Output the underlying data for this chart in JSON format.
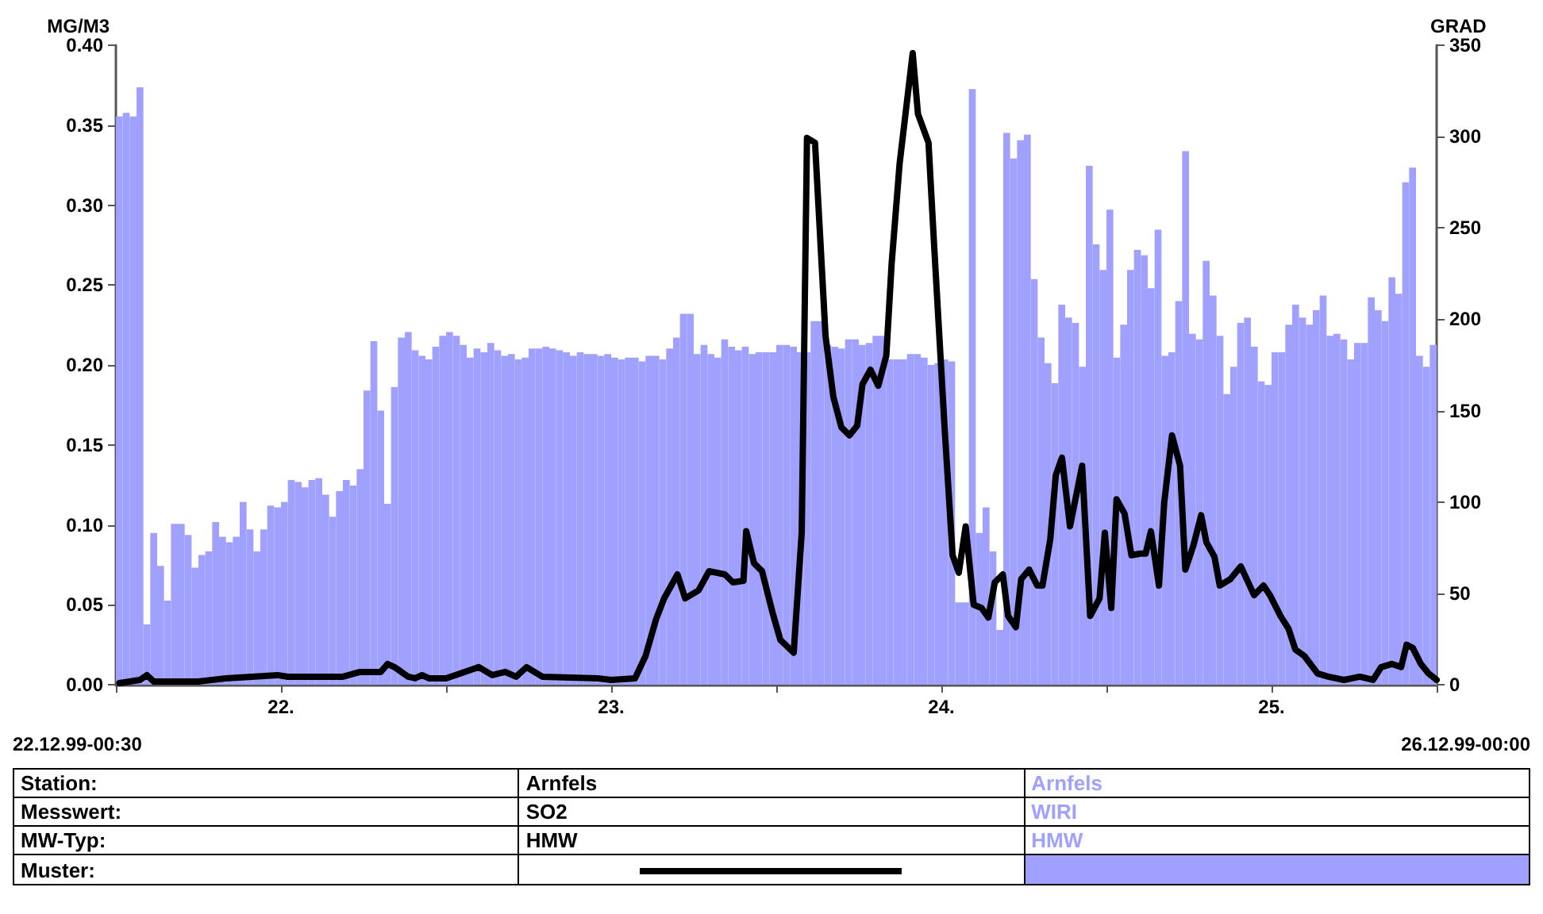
{
  "chart_data": {
    "type": "line",
    "ylabel": "MG/M3",
    "y2label": "GRAD",
    "xlim": [
      "--12-22T00:00",
      "--12-26T00:00"
    ],
    "xticks": [
      {
        "value": "--12-22T00:00",
        "label": null
      },
      {
        "value": "--12-22T12:00",
        "label": "22."
      },
      {
        "value": "--12-23T00:00",
        "label": null
      },
      {
        "value": "--12-23T12:00",
        "label": "23."
      },
      {
        "value": "--12-24T00:00",
        "label": null
      },
      {
        "value": "--12-24T12:00",
        "label": "24."
      },
      {
        "value": "--12-25T00:00",
        "label": null
      },
      {
        "value": "--12-25T12:00",
        "label": "25."
      },
      {
        "value": "--12-26T00:00",
        "label": null
      }
    ],
    "ylim": [
      0,
      0.4
    ],
    "yticks": [
      {
        "value": 0,
        "label": "0.00"
      },
      {
        "value": 0.05,
        "label": "0.05"
      },
      {
        "value": 0.1,
        "label": "0.10"
      },
      {
        "value": 0.15,
        "label": "0.15"
      },
      {
        "value": 0.2,
        "label": "0.20"
      },
      {
        "value": 0.25,
        "label": "0.25"
      },
      {
        "value": 0.3,
        "label": "0.30"
      },
      {
        "value": 0.35,
        "label": "0.35"
      },
      {
        "value": 0.4,
        "label": "0.40"
      }
    ],
    "y2lim": [
      0,
      350
    ],
    "y2ticks": [
      0,
      50,
      100,
      150,
      200,
      250,
      300,
      350
    ],
    "x": [
      "--12-22T00:15",
      "--12-22T00:45",
      "--12-22T01:15",
      "--12-22T01:45",
      "--12-22T02:15",
      "--12-22T02:45",
      "--12-22T03:15",
      "--12-22T03:45",
      "--12-22T04:15",
      "--12-22T04:45",
      "--12-22T05:15",
      "--12-22T05:45",
      "--12-22T06:15",
      "--12-22T06:45",
      "--12-22T07:15",
      "--12-22T07:45",
      "--12-22T08:15",
      "--12-22T08:45",
      "--12-22T09:15",
      "--12-22T09:45",
      "--12-22T10:15",
      "--12-22T10:45",
      "--12-22T11:15",
      "--12-22T11:45",
      "--12-22T12:15",
      "--12-22T12:45",
      "--12-22T13:15",
      "--12-22T13:45",
      "--12-22T14:15",
      "--12-22T14:45",
      "--12-22T15:15",
      "--12-22T15:45",
      "--12-22T16:15",
      "--12-22T16:45",
      "--12-22T17:15",
      "--12-22T17:45",
      "--12-22T18:15",
      "--12-22T18:45",
      "--12-22T19:15",
      "--12-22T19:45",
      "--12-22T20:15",
      "--12-22T20:45",
      "--12-22T21:15",
      "--12-22T21:45",
      "--12-22T22:15",
      "--12-22T22:45",
      "--12-22T23:15",
      "--12-22T23:45",
      "--12-23T00:15",
      "--12-23T00:45",
      "--12-23T01:15",
      "--12-23T01:45",
      "--12-23T02:15",
      "--12-23T02:45",
      "--12-23T03:15",
      "--12-23T03:45",
      "--12-23T04:15",
      "--12-23T04:45",
      "--12-23T05:15",
      "--12-23T05:45",
      "--12-23T06:15",
      "--12-23T06:45",
      "--12-23T07:15",
      "--12-23T07:45",
      "--12-23T08:15",
      "--12-23T08:45",
      "--12-23T09:15",
      "--12-23T09:45",
      "--12-23T10:15",
      "--12-23T10:45",
      "--12-23T11:15",
      "--12-23T11:45",
      "--12-23T12:15",
      "--12-23T12:45",
      "--12-23T13:15",
      "--12-23T13:45",
      "--12-23T14:15",
      "--12-23T14:45",
      "--12-23T15:15",
      "--12-23T15:45",
      "--12-23T16:15",
      "--12-23T16:45",
      "--12-23T17:15",
      "--12-23T17:45",
      "--12-23T18:15",
      "--12-23T18:45",
      "--12-23T19:15",
      "--12-23T19:45",
      "--12-23T20:15",
      "--12-23T20:45",
      "--12-23T21:15",
      "--12-23T21:45",
      "--12-23T22:15",
      "--12-23T22:45",
      "--12-23T23:15",
      "--12-23T23:45",
      "--12-24T00:15",
      "--12-24T00:45",
      "--12-24T01:15",
      "--12-24T01:45",
      "--12-24T02:15",
      "--12-24T02:45",
      "--12-24T03:15",
      "--12-24T03:45",
      "--12-24T04:15",
      "--12-24T04:45",
      "--12-24T05:15",
      "--12-24T05:45",
      "--12-24T06:15",
      "--12-24T06:45",
      "--12-24T07:15",
      "--12-24T07:45",
      "--12-24T08:15",
      "--12-24T08:45",
      "--12-24T09:15",
      "--12-24T09:45",
      "--12-24T10:15",
      "--12-24T10:45",
      "--12-24T11:15",
      "--12-24T11:45",
      "--12-24T12:15",
      "--12-24T12:45",
      "--12-24T13:15",
      "--12-24T13:45",
      "--12-24T14:15",
      "--12-24T14:45",
      "--12-24T15:15",
      "--12-24T15:45",
      "--12-24T16:15",
      "--12-24T16:45",
      "--12-24T17:15",
      "--12-24T17:45",
      "--12-24T18:15",
      "--12-24T18:45",
      "--12-24T19:15",
      "--12-24T19:45",
      "--12-24T20:15",
      "--12-24T20:45",
      "--12-24T21:15",
      "--12-24T21:45",
      "--12-24T22:15",
      "--12-24T22:45",
      "--12-24T23:15",
      "--12-24T23:45",
      "--12-25T00:15",
      "--12-25T00:45",
      "--12-25T01:15",
      "--12-25T01:45",
      "--12-25T02:15",
      "--12-25T02:45",
      "--12-25T03:15",
      "--12-25T03:45",
      "--12-25T04:15",
      "--12-25T04:45",
      "--12-25T05:15",
      "--12-25T05:45",
      "--12-25T06:15",
      "--12-25T06:45",
      "--12-25T07:15",
      "--12-25T07:45",
      "--12-25T08:15",
      "--12-25T08:45",
      "--12-25T09:15",
      "--12-25T09:45",
      "--12-25T10:15",
      "--12-25T10:45",
      "--12-25T11:15",
      "--12-25T11:45",
      "--12-25T12:15",
      "--12-25T12:45",
      "--12-25T13:15",
      "--12-25T13:45",
      "--12-25T14:15",
      "--12-25T14:45",
      "--12-25T15:15",
      "--12-25T15:45",
      "--12-25T16:15",
      "--12-25T16:45",
      "--12-25T17:15",
      "--12-25T17:45",
      "--12-25T18:15",
      "--12-25T18:45",
      "--12-25T19:15",
      "--12-25T19:45",
      "--12-25T20:15",
      "--12-25T20:45",
      "--12-25T21:15",
      "--12-25T21:45",
      "--12-25T22:15",
      "--12-25T22:45",
      "--12-25T23:15",
      "--12-25T23:45"
    ],
    "series": [
      {
        "name": "SO2",
        "axis": "y",
        "color": "#000000",
        "x": [
          "--12-22T00:15",
          "--12-22T01:45",
          "--12-22T02:15",
          "--12-22T02:45",
          "--12-22T06:00",
          "--12-22T08:00",
          "--12-22T11:45",
          "--12-22T12:30",
          "--12-22T16:30",
          "--12-22T17:45",
          "--12-22T19:15",
          "--12-22T19:45",
          "--12-22T20:15",
          "--12-22T20:45",
          "--12-22T21:15",
          "--12-22T21:45",
          "--12-22T22:15",
          "--12-22T22:45",
          "--12-23T00:00",
          "--12-23T02:23",
          "--12-23T03:21",
          "--12-23T04:18",
          "--12-23T05:05",
          "--12-23T05:51",
          "--12-23T07:00",
          "--12-23T11:02",
          "--12-23T12:00",
          "--12-23T13:44",
          "--12-23T14:30",
          "--12-23T15:16",
          "--12-23T15:51",
          "--12-23T16:49",
          "--12-23T17:23",
          "--12-23T17:58",
          "--12-23T18:21",
          "--12-23T19:07",
          "--12-23T20:16",
          "--12-23T20:51",
          "--12-23T21:37",
          "--12-23T21:49",
          "--12-23T22:23",
          "--12-23T22:58",
          "--12-23T23:44",
          "--12-24T00:18",
          "--12-24T01:16",
          "--12-24T01:51",
          "--12-24T02:14",
          "--12-24T02:49",
          "--12-24T03:35",
          "--12-24T04:09",
          "--12-24T04:44",
          "--12-24T05:19",
          "--12-24T05:53",
          "--12-24T06:16",
          "--12-24T06:51",
          "--12-24T07:25",
          "--12-24T08:00",
          "--12-24T08:23",
          "--12-24T08:58",
          "--12-24T09:55",
          "--12-24T10:18",
          "--12-24T11:04",
          "--12-24T11:28",
          "--12-24T12:14",
          "--12-24T12:49",
          "--12-24T13:16",
          "--12-24T13:46",
          "--12-24T14:21",
          "--12-24T14:55",
          "--12-24T15:25",
          "--12-24T15:53",
          "--12-24T16:28",
          "--12-24T16:51",
          "--12-24T17:25",
          "--12-24T17:48",
          "--12-24T18:23",
          "--12-24T18:58",
          "--12-24T19:21",
          "--12-24T19:55",
          "--12-24T20:19",
          "--12-24T20:46",
          "--12-24T21:21",
          "--12-24T22:14",
          "--12-24T22:49",
          "--12-24T23:30",
          "--12-24T23:53",
          "--12-25T00:21",
          "--12-25T00:44",
          "--12-25T01:19",
          "--12-25T01:49",
          "--12-25T02:28",
          "--12-25T02:51",
          "--12-25T03:14",
          "--12-25T03:49",
          "--12-25T04:12",
          "--12-25T04:46",
          "--12-25T05:21",
          "--12-25T05:44",
          "--12-25T06:19",
          "--12-25T06:53",
          "--12-25T07:16",
          "--12-25T07:51",
          "--12-25T08:14",
          "--12-25T09:00",
          "--12-25T09:46",
          "--12-25T10:44",
          "--12-25T11:25",
          "--12-25T11:53",
          "--12-25T12:39",
          "--12-25T13:14",
          "--12-25T13:44",
          "--12-25T14:23",
          "--12-25T15:21",
          "--12-25T16:07",
          "--12-25T17:16",
          "--12-25T18:25",
          "--12-25T19:23",
          "--12-25T19:58",
          "--12-25T20:44",
          "--12-25T21:25",
          "--12-25T21:49",
          "--12-25T22:16",
          "--12-25T22:51",
          "--12-25T23:25",
          "--12-26T00:00"
        ],
        "values": [
          0.001,
          0.003,
          0.006,
          0.002,
          0.002,
          0.004,
          0.006,
          0.005,
          0.005,
          0.008,
          0.008,
          0.013,
          0.011,
          0.008,
          0.005,
          0.004,
          0.006,
          0.004,
          0.004,
          0.011,
          0.006,
          0.008,
          0.005,
          0.011,
          0.005,
          0.004,
          0.003,
          0.004,
          0.018,
          0.041,
          0.054,
          0.069,
          0.054,
          0.057,
          0.059,
          0.071,
          0.069,
          0.064,
          0.065,
          0.096,
          0.076,
          0.071,
          0.045,
          0.028,
          0.02,
          0.095,
          0.342,
          0.339,
          0.218,
          0.18,
          0.161,
          0.156,
          0.162,
          0.188,
          0.197,
          0.187,
          0.206,
          0.263,
          0.326,
          0.395,
          0.357,
          0.339,
          0.276,
          0.161,
          0.081,
          0.07,
          0.099,
          0.05,
          0.048,
          0.042,
          0.064,
          0.069,
          0.043,
          0.036,
          0.066,
          0.072,
          0.062,
          0.062,
          0.091,
          0.131,
          0.142,
          0.099,
          0.137,
          0.043,
          0.054,
          0.095,
          0.048,
          0.116,
          0.107,
          0.081,
          0.082,
          0.082,
          0.096,
          0.062,
          0.114,
          0.156,
          0.137,
          0.072,
          0.087,
          0.106,
          0.089,
          0.08,
          0.062,
          0.066,
          0.074,
          0.056,
          0.062,
          0.056,
          0.043,
          0.035,
          0.022,
          0.018,
          0.007,
          0.005,
          0.003,
          0.005,
          0.003,
          0.011,
          0.013,
          0.011,
          0.025,
          0.023,
          0.013,
          0.007,
          0.003
        ]
      },
      {
        "name": "WIRI",
        "type": "bar",
        "axis": "y2",
        "color": "#a0a0ff",
        "values": [
          311,
          313,
          311,
          327,
          33,
          83,
          65,
          46,
          88,
          88,
          82,
          64,
          71,
          73,
          89,
          81,
          78,
          81,
          100,
          85,
          73,
          85,
          98,
          97,
          100,
          112,
          111,
          108,
          112,
          113,
          104,
          92,
          106,
          112,
          109,
          118,
          161,
          188,
          150,
          99,
          163,
          190,
          193,
          183,
          180,
          178,
          185,
          191,
          193,
          191,
          186,
          179,
          184,
          182,
          187,
          183,
          180,
          181,
          178,
          179,
          184,
          184,
          185,
          184,
          183,
          182,
          180,
          182,
          181,
          181,
          180,
          181,
          179,
          178,
          179,
          179,
          177,
          180,
          180,
          178,
          184,
          190,
          203,
          203,
          181,
          186,
          181,
          179,
          189,
          185,
          183,
          185,
          181,
          182,
          182,
          182,
          186,
          186,
          185,
          182,
          182,
          199,
          199,
          186,
          185,
          184,
          189,
          189,
          186,
          187,
          191,
          191,
          178,
          178,
          178,
          181,
          181,
          179,
          175,
          176,
          178,
          177,
          45,
          45,
          326,
          83,
          97,
          73,
          30,
          302,
          288,
          298,
          301,
          222,
          190,
          176,
          165,
          208,
          201,
          198,
          174,
          284,
          241,
          227,
          260,
          179,
          197,
          227,
          238,
          235,
          217,
          249,
          180,
          182,
          210,
          292,
          192,
          189,
          232,
          213,
          191,
          159,
          174,
          198,
          201,
          185,
          166,
          164,
          182,
          182,
          197,
          208,
          201,
          197,
          205,
          213,
          191,
          192,
          189,
          178,
          187,
          187,
          212,
          205,
          199,
          223,
          214,
          275,
          283,
          180,
          174,
          186
        ]
      }
    ],
    "marker": "none",
    "line_style": "solid",
    "legend": "bottom",
    "annotations": [
      "22.12.99-00:30",
      "26.12.99-00:00",
      "Station:",
      "Arnfels",
      "Arnfels",
      "Messwert:",
      "MW-Typ:",
      "HMW",
      "HMW",
      "Muster:"
    ]
  }
}
